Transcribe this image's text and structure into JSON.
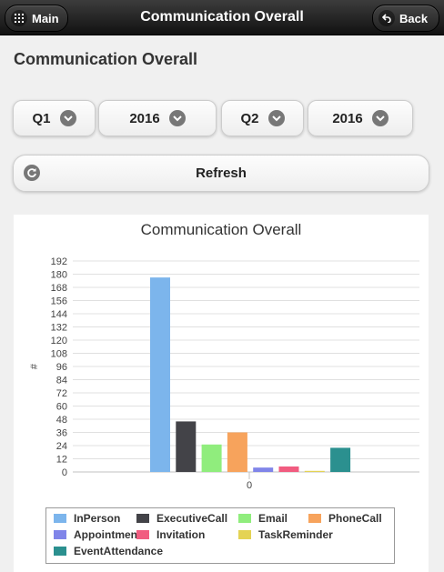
{
  "header": {
    "title": "Communication Overall",
    "main_label": "Main",
    "back_label": "Back"
  },
  "page": {
    "title": "Communication Overall"
  },
  "filters": {
    "from_quarter": "Q1",
    "from_year": "2016",
    "to_quarter": "Q2",
    "to_year": "2016"
  },
  "refresh_label": "Refresh",
  "chart_data": {
    "type": "bar",
    "title": "Communication Overall",
    "xlabel": "",
    "ylabel": "#",
    "categories": [
      "0"
    ],
    "ylim": [
      0,
      192
    ],
    "yticks": [
      0,
      12,
      24,
      36,
      48,
      60,
      72,
      84,
      96,
      108,
      120,
      132,
      144,
      156,
      168,
      180,
      192
    ],
    "grid": true,
    "legend_position": "bottom",
    "series": [
      {
        "name": "InPerson",
        "values": [
          177
        ],
        "color": "#7cb5ec"
      },
      {
        "name": "ExecutiveCall",
        "values": [
          46
        ],
        "color": "#434348"
      },
      {
        "name": "Email",
        "values": [
          25
        ],
        "color": "#90ed7d"
      },
      {
        "name": "PhoneCall",
        "values": [
          36
        ],
        "color": "#f7a35c"
      },
      {
        "name": "Appointment",
        "values": [
          4
        ],
        "color": "#8085e9"
      },
      {
        "name": "Invitation",
        "values": [
          5
        ],
        "color": "#f15c80"
      },
      {
        "name": "TaskReminder",
        "values": [
          1
        ],
        "color": "#e4d354"
      },
      {
        "name": "EventAttendance",
        "values": [
          22
        ],
        "color": "#2b908f"
      }
    ]
  }
}
